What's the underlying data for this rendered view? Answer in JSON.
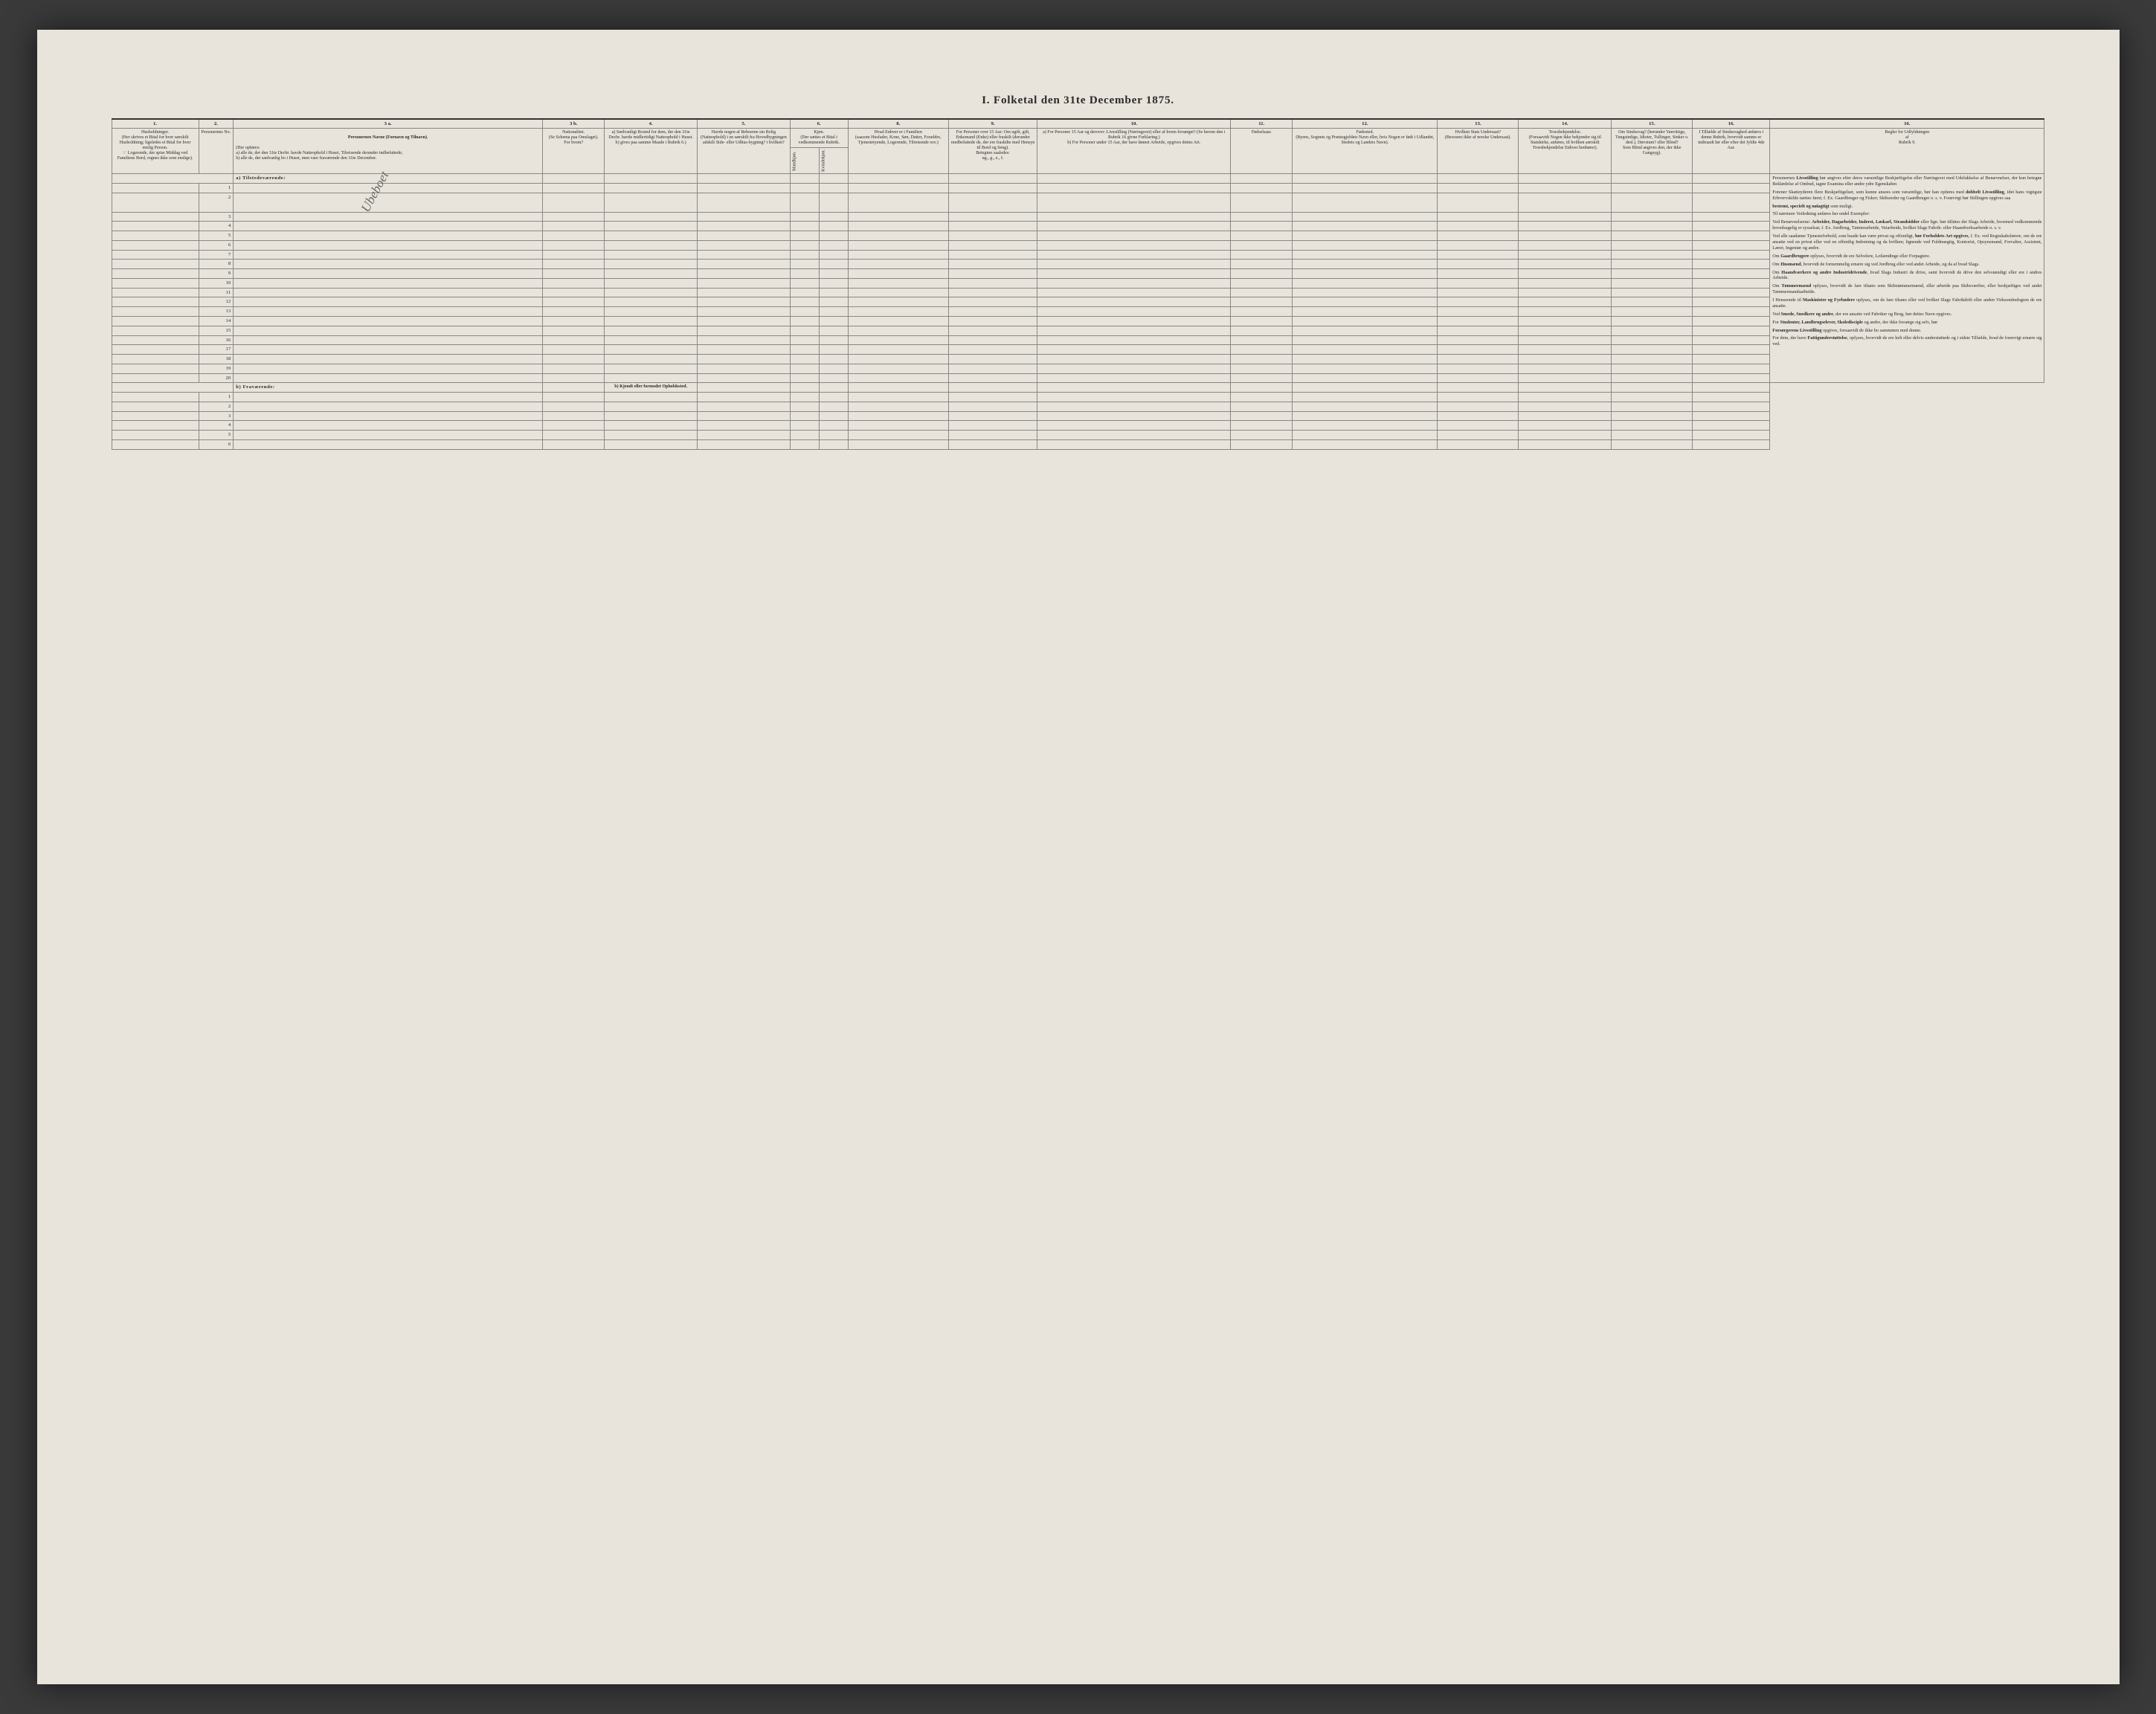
{
  "title": "I.  Folketal den 31te December 1875.",
  "diagonal_stamp": "Ubeboet",
  "columns": {
    "nums": [
      "1.",
      "2.",
      "3 a.",
      "3 b.",
      "4.",
      "5.",
      "6.",
      "7.",
      "8.",
      "9.",
      "10.",
      "11.",
      "12.",
      "13.",
      "14.",
      "15.",
      "16."
    ],
    "h1": "Husholdninger.\n(Her skrives et Bital for hver særskilt Husholdning; ligeledes et Bital for hver enslig Person.\n☞ Logerende, der spise Middag ved Familiens Bord, regnes ikke som enslige).",
    "h2": "Personernes No.",
    "h3a_title": "Personernes Navne (Fornavn og Tilnavn).",
    "h3a_body": "(Her opføres:\na) alle de, der den 31te Decbr. havde Natteophold i Huset, Tilreisende derunder indbefattede;\nb) alle de, der sædvanlig bo i Huset, men vare fraværende den 31te December.",
    "h3b": "Nationalitet.\n(Se Schema paa Omslaget).\nFor hvem?",
    "h4": "a) Sædvanligt Bosted for dem, der den 31te Decbr. havde midlertidigt Natteophold i Huset.\nb) gives paa samme Maade i Rubrik 6.)",
    "h5": "Havde nogen af Beboerne sin Bolig (Natteophold) i en særskilt fra Hovedbygningen adskilt Side- eller Udhus-bygning? i hvilken?",
    "h6": "Kjøn.\n(Der sættes et Bital i vedkommende Rubrik.",
    "h6a": "Mandkjøn.",
    "h6b": "Kvindekjøn.",
    "h7": "Hvad Enhver er i Familien\n(saasom Husfader, Kone, Søn, Datter, Forældre, Tjenestetyende, Logerende, Tilreisende osv.)",
    "h8": "For Personer over 15 Aar: Om ugift, gift, Enkemand (Enke) eller fraskilt (derunder medbefattede de, der ere fraskilte med Hensyn til Bord og Seng).\nBetegnes saaledes:\nug., g., e., f.",
    "h9": "a) For Personer 15 Aar og derover: Livsstilling (Næringsvei) eller af hvem forsørget? (Se herom den i Rubrik 16 givne Forklaring.)\nb) For Personer under 15 Aar, der have lønnet Arbeide, opgives dettes Art.",
    "h10": "Fødselsaar.",
    "h11": "Fødested.\n(Byens, Sognets og Præstegjeldets Navn eller, hvis Nogen er født i Udlandet, Stedets og Landets Navn).",
    "h12": "Hvilken Stats Undersaat?\n(Besvares ikke af norske Undersaat).",
    "h13": "Troesbekjendelse.\n(Forsaavidt Nogen ikke bekjender sig til Statskirke, anføres, til hvilken særskilt Troesbekjendelse Enhver henhører).",
    "h14": "Om Sindssvag? (herunder Vanvittige, Tungsindige, Idioter, Tullinger, Sinker o. desl.). Døvstum? eller Blind?\nSom Blind angives den, der ikke Gangsyg).",
    "h15": "I Tilfælde af Sindssvaghed anføres i denne Rubrik, hvorvidt samme er indtraadt før eller efter det fyldte 4de Aar.",
    "h16": "Regler for Udfyldningen\naf\nRubrik 9."
  },
  "sections": {
    "a": "a) Tilstedeværende:",
    "b": "b) Fraværende:",
    "b_alt": "b) Kjendt eller formodet Opholdssted."
  },
  "rows_a": [
    1,
    2,
    3,
    4,
    5,
    6,
    7,
    8,
    9,
    10,
    11,
    12,
    13,
    14,
    15,
    16,
    17,
    18,
    19,
    20
  ],
  "rows_b": [
    1,
    2,
    3,
    4,
    5,
    6
  ],
  "rules": [
    {
      "t": "Personernes ",
      "b": "Livsstilling",
      "r": " bør angives efter deres væsentlige Beskjæftigelse eller Næringsvei med Udelukkelse af Benævnelser, der kun betegne Beklædelse af Ombud, tagne Examina eller andre ydre Egenskaber."
    },
    {
      "t": "Forener Skatteyderen flere Beskjæftigelser, som kunne ansees som væsentlige, bør han opføres med ",
      "b": "dobbelt Livsstilling",
      "r": ", idet hans vigtigste Erhvervskilde nættes først; f. Ex. Gaardbruger og Fisker; Skibsreder og Gaardbruger o. s. v. Forøvrigt bør Stillingen opgives saa "
    },
    {
      "b": "bestemt, specielt og nøiagtigt",
      "r": " som muligt."
    },
    {
      "t": "Til nærmere Veiledning anføres her endel Exempler:"
    },
    {
      "t": "Ved Benævnelserne: ",
      "b": "Arbeider, Dagarbeider, Inderst, Løskarl, Strandsidder",
      "r": " eller lign. bør tilføies det Slags Arbeide, hvormed vedkommende hovedsagelig er sysselsat; f. Ex. Jordbrug, Tømterarbeide, Veiarbeide, hvilket Slags Fabrik- eller Haandverksarbeide o. s. v."
    },
    {
      "t": "Ved alle saadanne Tjenesteforhold, som baade kan være privat og offentligt, ",
      "b": "bør Forholdets Art opgives",
      "r": ", f. Ex. ved Regnskabsførere, om de ere ansatte ved en privat eller ved en offentlig Indretning og da hvilken; lignende ved Fuldmægtig, Kontorist, Opsynsmand, Forvalter, Assistent, Lærer, Ingeniør og andre."
    },
    {
      "t": "Om ",
      "b": "Gaardbrugere",
      "r": " oplyses, hvorvidt de ere Selvelere, Leilændinge eller Forpagtere."
    },
    {
      "t": "Om ",
      "b": "Husmænd",
      "r": ", hvorvidt de fornemmelig ernære sig ved Jordbrug eller ved andet Arbeide, og da af hvad Slags."
    },
    {
      "t": "Om ",
      "b": "Haandværkere og andre Industridrivende",
      "r": ", hvad Slags Industri de drive, samt hvorvidt de drive den selvstændigt eller ere i andres Arbeide."
    },
    {
      "t": "Om ",
      "b": "Tømmermænd",
      "r": " oplyses, hvorvidt de fare tilsøes som Skibstømmermænd, eller arbeide paa Skibsværfter, eller beskjæftiges ved andet Tømmermandsarbeide."
    },
    {
      "t": "I Henseende til ",
      "b": "Maskinister og Fyrbødere",
      "r": " oplyses, om de fare tilsøes eller ved hvilket Slags Fabrikdrift eller anden Virksomhedsgren de ere ansatte."
    },
    {
      "t": "Ved ",
      "b": "Smede, Snedkere og andre",
      "r": ", der ere ansatte ved Fabriker og Brug, bør dettes Navn opgives."
    },
    {
      "t": "For ",
      "b": "Studenter, Landbrugselever, Skoledisciple",
      "r": " og andre, der ikke forsørge sig selv, bør "
    },
    {
      "b": "Forsørgerens Livsstilling",
      "r": " opgives, forsaavidt de ikke bo sammmen med denne."
    },
    {
      "t": "For dem, der have ",
      "b": "Fattigunderstøttelse",
      "r": ", oplyses, hvorvidt de ere helt eller delvis understøttede og i sidste Tilfælde, hvad de forøvrigt ernære sig ved."
    }
  ],
  "colors": {
    "paper": "#e8e4db",
    "ink": "#2a2a2a",
    "rule": "#888888",
    "heavy_rule": "#333333",
    "frame": "#3a3a3a"
  }
}
